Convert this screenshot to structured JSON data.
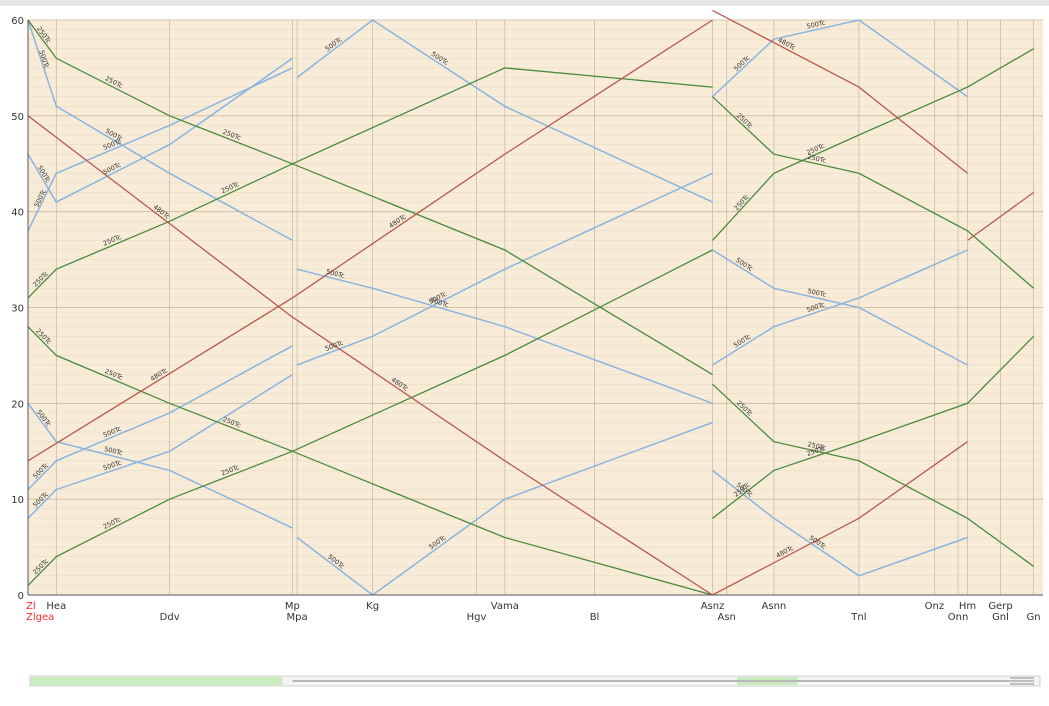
{
  "chart_data": {
    "type": "line",
    "title": "",
    "xlabel": "",
    "ylabel": "",
    "ylim": [
      0,
      60
    ],
    "y_ticks": [
      0,
      10,
      20,
      30,
      40,
      50,
      60
    ],
    "grid": true,
    "colors": {
      "plot_bg": "#f8ecd8",
      "grid_major": "#c9b89a",
      "grid_minor": "#e6d8bd",
      "station_line": "#c8bca8",
      "local_train": "#8ab4e0",
      "express_train": "#4a8a3c",
      "freight_train": "#b85a50",
      "highlight_station": "#ff2a2a",
      "scrollbar_green": "#c8ecc0",
      "scrollbar_gray": "#b8b8b8"
    },
    "stations": [
      {
        "name": "Zl",
        "x": 0,
        "row": 0,
        "highlight": true
      },
      {
        "name": "Zlgea",
        "x": 0,
        "row": 1,
        "highlight": true
      },
      {
        "name": "Hea",
        "x": 6,
        "row": 0
      },
      {
        "name": "Ddv",
        "x": 30,
        "row": 1
      },
      {
        "name": "Mp",
        "x": 56,
        "row": 0
      },
      {
        "name": "Mpa",
        "x": 57,
        "row": 1
      },
      {
        "name": "Kg",
        "x": 73,
        "row": 0
      },
      {
        "name": "Hgv",
        "x": 95,
        "row": 1
      },
      {
        "name": "Vama",
        "x": 101,
        "row": 0
      },
      {
        "name": "Bl",
        "x": 120,
        "row": 1
      },
      {
        "name": "Asnz",
        "x": 145,
        "row": 0
      },
      {
        "name": "Asn",
        "x": 148,
        "row": 1
      },
      {
        "name": "Asnn",
        "x": 158,
        "row": 0
      },
      {
        "name": "Tnl",
        "x": 176,
        "row": 1
      },
      {
        "name": "Onz",
        "x": 192,
        "row": 0
      },
      {
        "name": "Onn",
        "x": 197,
        "row": 1
      },
      {
        "name": "Hm",
        "x": 199,
        "row": 0
      },
      {
        "name": "Gerp",
        "x": 206,
        "row": 0
      },
      {
        "name": "Gnl",
        "x": 206,
        "row": 1
      },
      {
        "name": "Gn",
        "x": 213,
        "row": 1
      }
    ],
    "series": [
      {
        "kind": "local",
        "x": [
          0,
          6,
          30,
          56
        ],
        "y": [
          60,
          51,
          44,
          37
        ],
        "labels": [
          "500Tc",
          "500Tc"
        ]
      },
      {
        "kind": "local",
        "x": [
          0,
          6,
          30,
          56
        ],
        "y": [
          46,
          41,
          47,
          56
        ],
        "labels": [
          "500Tc",
          "500Tc"
        ]
      },
      {
        "kind": "local",
        "x": [
          0,
          6,
          30,
          56
        ],
        "y": [
          38,
          44,
          49,
          55
        ],
        "labels": [
          "500Tc",
          "500Tc"
        ]
      },
      {
        "kind": "local",
        "x": [
          0,
          6,
          30,
          56
        ],
        "y": [
          20,
          16,
          13,
          7
        ],
        "labels": [
          "500Tc",
          "500Tc"
        ]
      },
      {
        "kind": "local",
        "x": [
          0,
          6,
          30,
          56
        ],
        "y": [
          11,
          14,
          19,
          26
        ],
        "labels": [
          "500Tc",
          "500Tc"
        ]
      },
      {
        "kind": "local",
        "x": [
          0,
          6,
          30,
          56
        ],
        "y": [
          8,
          11,
          15,
          23
        ],
        "labels": [
          "500Tc",
          "500Tc"
        ]
      },
      {
        "kind": "local",
        "x": [
          57,
          73,
          101,
          145
        ],
        "y": [
          54,
          60,
          51,
          41
        ],
        "labels": [
          "500Tc",
          "500Tc"
        ]
      },
      {
        "kind": "local",
        "x": [
          57,
          73,
          101,
          145
        ],
        "y": [
          34,
          32,
          28,
          20
        ],
        "labels": [
          "500Tc",
          "500Tc"
        ]
      },
      {
        "kind": "local",
        "x": [
          57,
          73,
          101,
          145
        ],
        "y": [
          6,
          0,
          10,
          18
        ],
        "labels": [
          "500Tc",
          "500Tc"
        ]
      },
      {
        "kind": "local",
        "x": [
          57,
          73,
          101,
          145
        ],
        "y": [
          24,
          27,
          34,
          44
        ],
        "labels": [
          "500Tc",
          "500Tc"
        ]
      },
      {
        "kind": "local",
        "x": [
          145,
          158,
          176,
          199
        ],
        "y": [
          52,
          58,
          60,
          52
        ],
        "labels": [
          "500Tc",
          "500Tc"
        ]
      },
      {
        "kind": "local",
        "x": [
          145,
          158,
          176,
          199
        ],
        "y": [
          36,
          32,
          30,
          24
        ],
        "labels": [
          "500Tc",
          "500Tc"
        ]
      },
      {
        "kind": "local",
        "x": [
          145,
          158,
          176,
          199
        ],
        "y": [
          13,
          8,
          2,
          6
        ],
        "labels": [
          "500Tc",
          "500Tc"
        ]
      },
      {
        "kind": "local",
        "x": [
          145,
          158,
          176,
          199
        ],
        "y": [
          24,
          28,
          31,
          36
        ],
        "labels": [
          "500Tc",
          "500Tc"
        ]
      },
      {
        "kind": "express",
        "x": [
          0,
          6,
          30,
          56,
          101,
          145
        ],
        "y": [
          60,
          56,
          50,
          45,
          36,
          23
        ],
        "labels": [
          "250Tc",
          "250Tc",
          "250Tc"
        ]
      },
      {
        "kind": "express",
        "x": [
          0,
          6,
          30,
          56,
          101,
          145
        ],
        "y": [
          31,
          34,
          39,
          45,
          55,
          53
        ],
        "labels": [
          "250Tc",
          "250Tc",
          "250Tc"
        ]
      },
      {
        "kind": "express",
        "x": [
          0,
          6,
          30,
          56,
          101,
          145
        ],
        "y": [
          28,
          25,
          20,
          15,
          6,
          0
        ],
        "labels": [
          "250Tc",
          "250Tc",
          "250Tc"
        ]
      },
      {
        "kind": "express",
        "x": [
          0,
          6,
          30,
          56,
          101,
          145
        ],
        "y": [
          1,
          4,
          10,
          15,
          25,
          36
        ],
        "labels": [
          "250Tc",
          "250Tc",
          "250Tc"
        ]
      },
      {
        "kind": "express",
        "x": [
          145,
          158,
          176,
          199,
          213
        ],
        "y": [
          52,
          46,
          44,
          38,
          32
        ],
        "labels": [
          "250Tc",
          "250Tc"
        ]
      },
      {
        "kind": "express",
        "x": [
          145,
          158,
          176,
          199,
          213
        ],
        "y": [
          22,
          16,
          14,
          8,
          3
        ],
        "labels": [
          "250Tc",
          "250Tc"
        ]
      },
      {
        "kind": "express",
        "x": [
          145,
          158,
          176,
          199,
          213
        ],
        "y": [
          37,
          44,
          48,
          53,
          57
        ],
        "labels": [
          "250Tc",
          "250Tc"
        ]
      },
      {
        "kind": "express",
        "x": [
          145,
          158,
          176,
          199,
          213
        ],
        "y": [
          8,
          13,
          16,
          20,
          27
        ],
        "labels": [
          "250Tc",
          "250Tc"
        ]
      },
      {
        "kind": "freight",
        "x": [
          0,
          56,
          101,
          145
        ],
        "y": [
          50,
          29,
          14,
          0
        ],
        "labels": [
          "480Tc",
          "480Tc"
        ]
      },
      {
        "kind": "freight",
        "x": [
          0,
          56,
          101,
          145
        ],
        "y": [
          14,
          31,
          46,
          60
        ],
        "labels": [
          "480Tc",
          "480Tc"
        ]
      },
      {
        "kind": "freight",
        "x": [
          145,
          176,
          199
        ],
        "y": [
          61,
          53,
          44
        ],
        "labels": [
          "480Tc"
        ]
      },
      {
        "kind": "freight",
        "x": [
          145,
          176,
          199
        ],
        "y": [
          0,
          8,
          16
        ],
        "labels": [
          "480Tc"
        ]
      },
      {
        "kind": "freight",
        "x": [
          199,
          213
        ],
        "y": [
          37,
          42
        ],
        "labels": []
      }
    ]
  },
  "scrollbar": {
    "viewport_start": 0.0,
    "viewport_end": 0.25
  }
}
